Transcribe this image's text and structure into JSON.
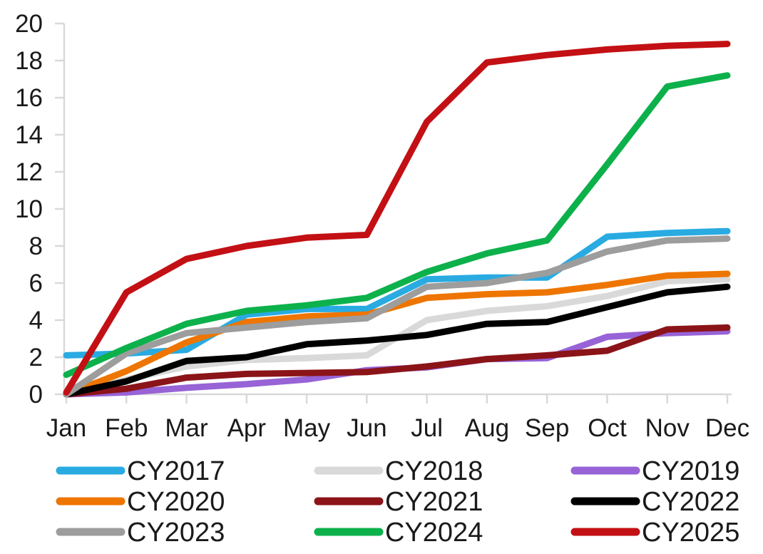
{
  "chart_data": {
    "type": "line",
    "x": [
      "Jan",
      "Feb",
      "Mar",
      "Apr",
      "May",
      "Jun",
      "Jul",
      "Aug",
      "Sep",
      "Oct",
      "Nov",
      "Dec"
    ],
    "series": [
      {
        "name": "CY2017",
        "color": "#29ABE2",
        "values": [
          2.1,
          2.2,
          2.4,
          4.3,
          4.6,
          4.6,
          6.2,
          6.3,
          6.3,
          8.5,
          8.7,
          8.8
        ]
      },
      {
        "name": "CY2018",
        "color": "#D9D9D9",
        "values": [
          0,
          0.8,
          1.5,
          1.85,
          1.95,
          2.1,
          4.0,
          4.5,
          4.75,
          5.3,
          6.1,
          6.2
        ]
      },
      {
        "name": "CY2019",
        "color": "#9763D6",
        "values": [
          0,
          0.1,
          0.35,
          0.55,
          0.8,
          1.3,
          1.45,
          1.9,
          1.95,
          3.1,
          3.3,
          3.4
        ]
      },
      {
        "name": "CY2020",
        "color": "#EE7500",
        "values": [
          0,
          1.25,
          2.8,
          3.9,
          4.2,
          4.3,
          5.2,
          5.4,
          5.5,
          5.9,
          6.4,
          6.5
        ]
      },
      {
        "name": "CY2021",
        "color": "#8B1418",
        "values": [
          0,
          0.3,
          0.9,
          1.1,
          1.15,
          1.2,
          1.5,
          1.9,
          2.1,
          2.35,
          3.5,
          3.6
        ]
      },
      {
        "name": "CY2022",
        "color": "#000000",
        "values": [
          0,
          0.7,
          1.8,
          2.0,
          2.7,
          2.9,
          3.2,
          3.8,
          3.9,
          4.7,
          5.5,
          5.8
        ]
      },
      {
        "name": "CY2023",
        "color": "#9D9D9D",
        "values": [
          0,
          2.2,
          3.3,
          3.6,
          3.9,
          4.1,
          5.8,
          6.0,
          6.55,
          7.7,
          8.3,
          8.4
        ]
      },
      {
        "name": "CY2024",
        "color": "#0DB14B",
        "values": [
          1.05,
          2.5,
          3.8,
          4.5,
          4.8,
          5.2,
          6.6,
          7.6,
          8.3,
          12.4,
          16.6,
          17.2
        ]
      },
      {
        "name": "CY2025",
        "color": "#C31014",
        "values": [
          0.1,
          5.5,
          7.3,
          8.0,
          8.45,
          8.6,
          14.7,
          17.9,
          18.3,
          18.6,
          18.8,
          18.9
        ]
      }
    ],
    "title": "",
    "xlabel": "",
    "ylabel": "",
    "ylim": [
      0,
      20
    ],
    "ytick_step": 2,
    "y_tick_labels": [
      "0",
      "2",
      "4",
      "6",
      "8",
      "10",
      "12",
      "14",
      "16",
      "18",
      "20"
    ],
    "grid": false,
    "legend_position": "bottom",
    "legend_rows": [
      [
        "CY2017",
        "CY2018",
        "CY2019"
      ],
      [
        "CY2020",
        "CY2021",
        "CY2022"
      ],
      [
        "CY2023",
        "CY2024",
        "CY2025"
      ]
    ]
  },
  "style": {
    "axis_color": "#D9D9D9",
    "text_color": "#1a1a1a",
    "line_width": 9,
    "legend_line_width": 11
  }
}
